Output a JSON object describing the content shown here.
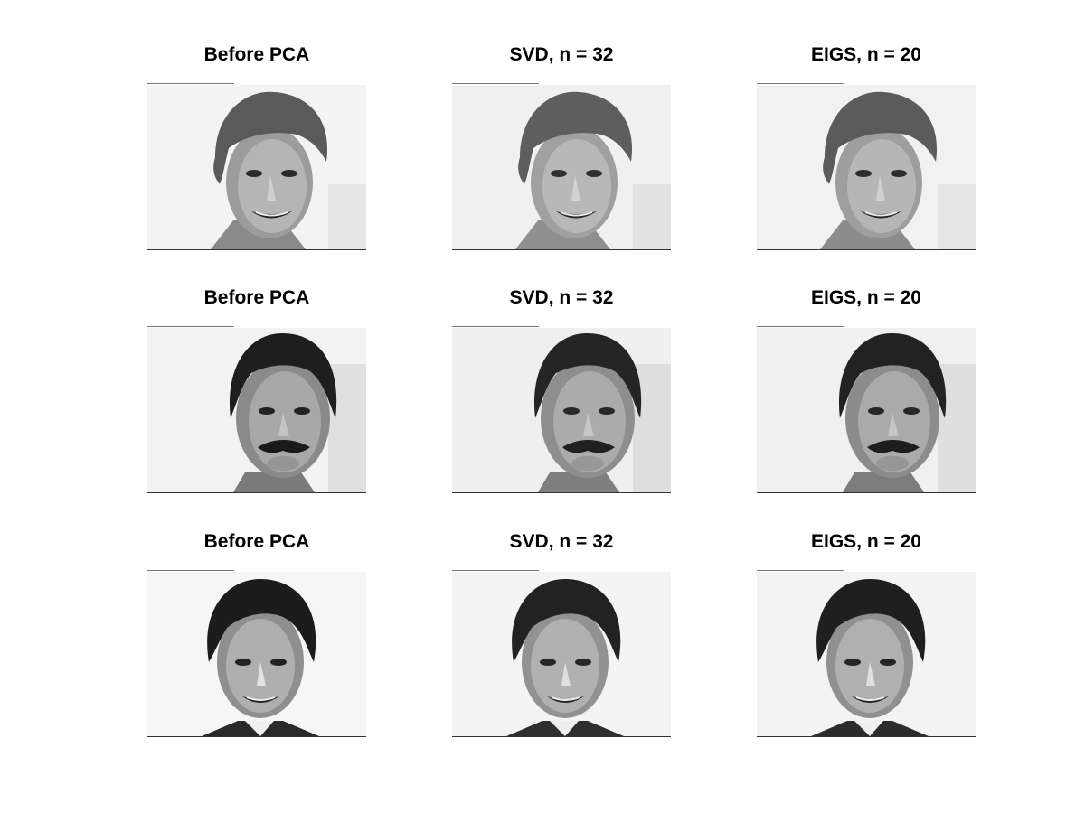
{
  "figure": {
    "rows": [
      {
        "panels": [
          {
            "title": "Before PCA",
            "face": "face-blond-smiling"
          },
          {
            "title": "SVD, n = 32",
            "face": "face-blond-smiling"
          },
          {
            "title": "EIGS, n = 20",
            "face": "face-blond-smiling"
          }
        ]
      },
      {
        "panels": [
          {
            "title": "Before PCA",
            "face": "face-dark-hair-mustache"
          },
          {
            "title": "SVD, n = 32",
            "face": "face-dark-hair-mustache"
          },
          {
            "title": "EIGS, n = 20",
            "face": "face-dark-hair-mustache"
          }
        ]
      },
      {
        "panels": [
          {
            "title": "Before PCA",
            "face": "face-dark-hair-smiling"
          },
          {
            "title": "SVD, n = 32",
            "face": "face-dark-hair-smiling"
          },
          {
            "title": "EIGS, n = 20",
            "face": "face-dark-hair-smiling"
          }
        ]
      }
    ]
  }
}
